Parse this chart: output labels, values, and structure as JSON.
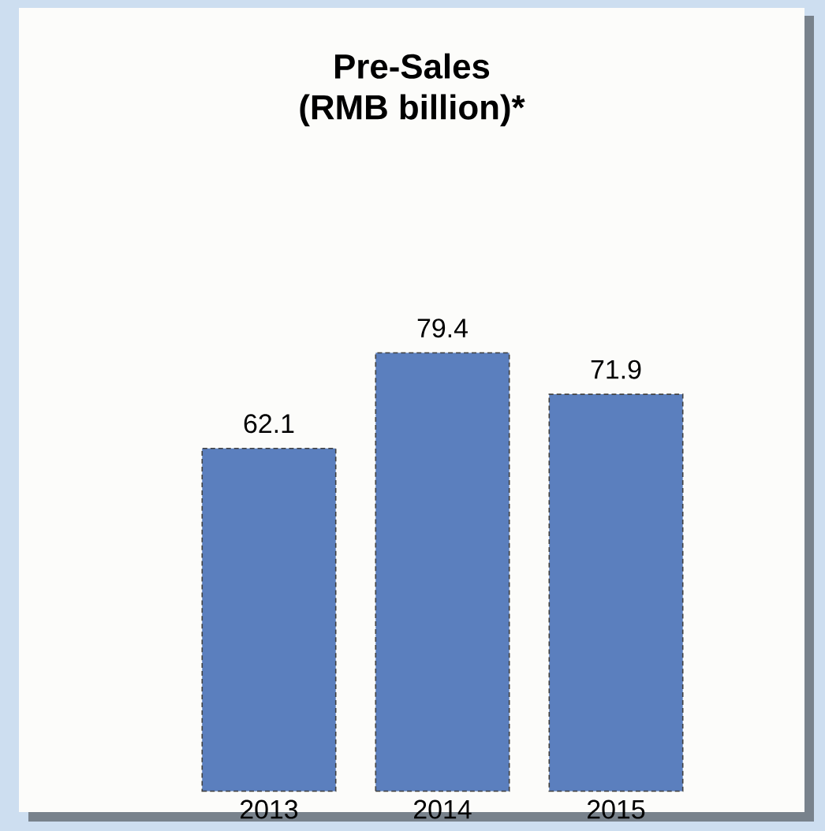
{
  "chart_data": {
    "type": "bar",
    "title": "Pre-Sales\n(RMB billion)*",
    "categories": [
      "2013",
      "2014",
      "2015"
    ],
    "values": [
      62.1,
      79.4,
      71.9
    ],
    "color": "#5b7fbe",
    "data_labels": true
  }
}
